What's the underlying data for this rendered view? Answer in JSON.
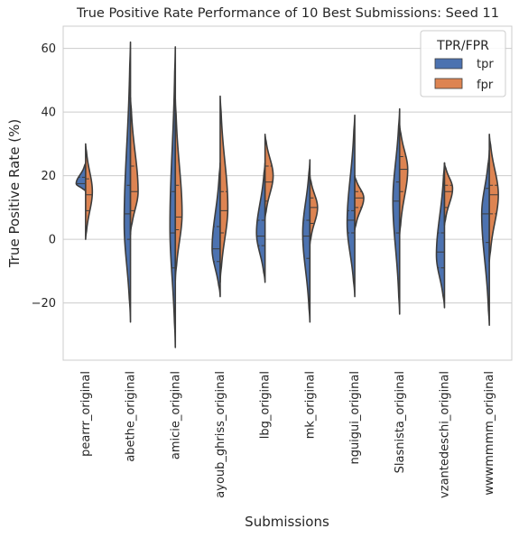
{
  "chart_data": {
    "type": "violin",
    "title": "True Positive Rate Performance of 10 Best Submissions: Seed 11",
    "xlabel": "Submissions",
    "ylabel": "True Positive Rate (%)",
    "ylim": [
      -38,
      67
    ],
    "yticks": [
      -20,
      0,
      20,
      40,
      60
    ],
    "grid": true,
    "legend": {
      "title": "TPR/FPR",
      "placement": "top-right",
      "entries": [
        "tpr",
        "fpr"
      ]
    },
    "colors": {
      "tpr": "#4c72b0",
      "fpr": "#dd8452",
      "edge": "#3c3c3c",
      "grid": "#cccccc"
    },
    "categories": [
      "pearrr_original",
      "abethe_original",
      "amicie_original",
      "ayoub_ghriss_original",
      "lbg_original",
      "mk_original",
      "nguigui_original",
      "Slasnista_original",
      "vzantedeschi_original",
      "wwwmmmm_original"
    ],
    "series": [
      {
        "name": "tpr",
        "min": [
          15,
          -26,
          -34,
          -18,
          -13.5,
          -26,
          -18,
          -23.5,
          -21.5,
          -27
        ],
        "max": [
          24,
          62,
          60.5,
          24,
          24,
          25,
          39,
          41,
          24,
          28
        ],
        "mode": [
          17.5,
          5,
          4,
          -3,
          2,
          2,
          5,
          12,
          -5,
          8
        ],
        "width": [
          0.42,
          0.28,
          0.24,
          0.36,
          0.38,
          0.32,
          0.34,
          0.3,
          0.36,
          0.34
        ],
        "quartiles": [
          [
            15.5,
            17.5,
            19.5
          ],
          [
            0,
            8,
            17
          ],
          [
            -9,
            2,
            15
          ],
          [
            -7,
            -3,
            4
          ],
          [
            -2,
            1,
            6
          ],
          [
            -6,
            1,
            6
          ],
          [
            2,
            6,
            9
          ],
          [
            2,
            12,
            18
          ],
          [
            -9,
            -4,
            2
          ],
          [
            -1,
            8,
            16
          ]
        ]
      },
      {
        "name": "fpr",
        "min": [
          0,
          1.5,
          -13,
          -13.5,
          6.5,
          -1.5,
          3,
          1.5,
          4.5,
          -7
        ],
        "max": [
          30,
          44.5,
          44,
          45,
          33,
          20,
          20,
          36,
          24,
          33
        ],
        "mode": [
          15,
          15,
          8,
          10,
          20,
          10,
          13,
          22,
          16,
          14
        ],
        "width": [
          0.3,
          0.34,
          0.3,
          0.34,
          0.36,
          0.34,
          0.4,
          0.36,
          0.36,
          0.4
        ],
        "quartiles": [
          [
            9,
            14,
            19
          ],
          [
            9,
            15,
            23
          ],
          [
            3,
            7,
            17
          ],
          [
            2,
            9,
            15
          ],
          [
            12,
            18,
            23
          ],
          [
            5,
            10,
            13
          ],
          [
            10,
            13,
            15
          ],
          [
            15,
            22,
            26
          ],
          [
            10,
            15,
            17
          ],
          [
            8,
            14,
            17
          ]
        ]
      }
    ]
  }
}
